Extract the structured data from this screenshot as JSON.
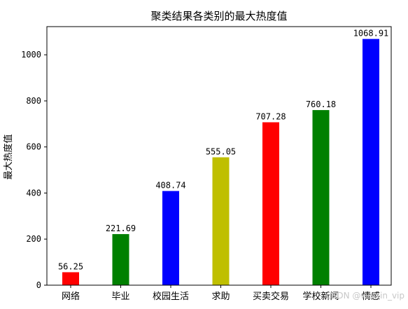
{
  "chart_data": {
    "type": "bar",
    "title": "聚类结果各类别的最大热度值",
    "xlabel": "",
    "ylabel": "最大热度值",
    "categories": [
      "网络",
      "毕业",
      "校园生活",
      "求助",
      "买卖交易",
      "学校新闻",
      "情感"
    ],
    "values": [
      56.25,
      221.69,
      408.74,
      555.05,
      707.28,
      760.18,
      1068.91
    ],
    "value_labels": [
      "56.25",
      "221.69",
      "408.74",
      "555.05",
      "707.28",
      "760.18",
      "1068.91"
    ],
    "colors": [
      "#ff0000",
      "#008000",
      "#0000ff",
      "#bfbf00",
      "#ff0000",
      "#008000",
      "#0000ff"
    ],
    "ylim": [
      0,
      1122.36
    ],
    "yticks": [
      0,
      200,
      400,
      600,
      800,
      1000
    ],
    "grid": false,
    "legend": "none"
  },
  "watermark": "CSDN @weixin_vip"
}
